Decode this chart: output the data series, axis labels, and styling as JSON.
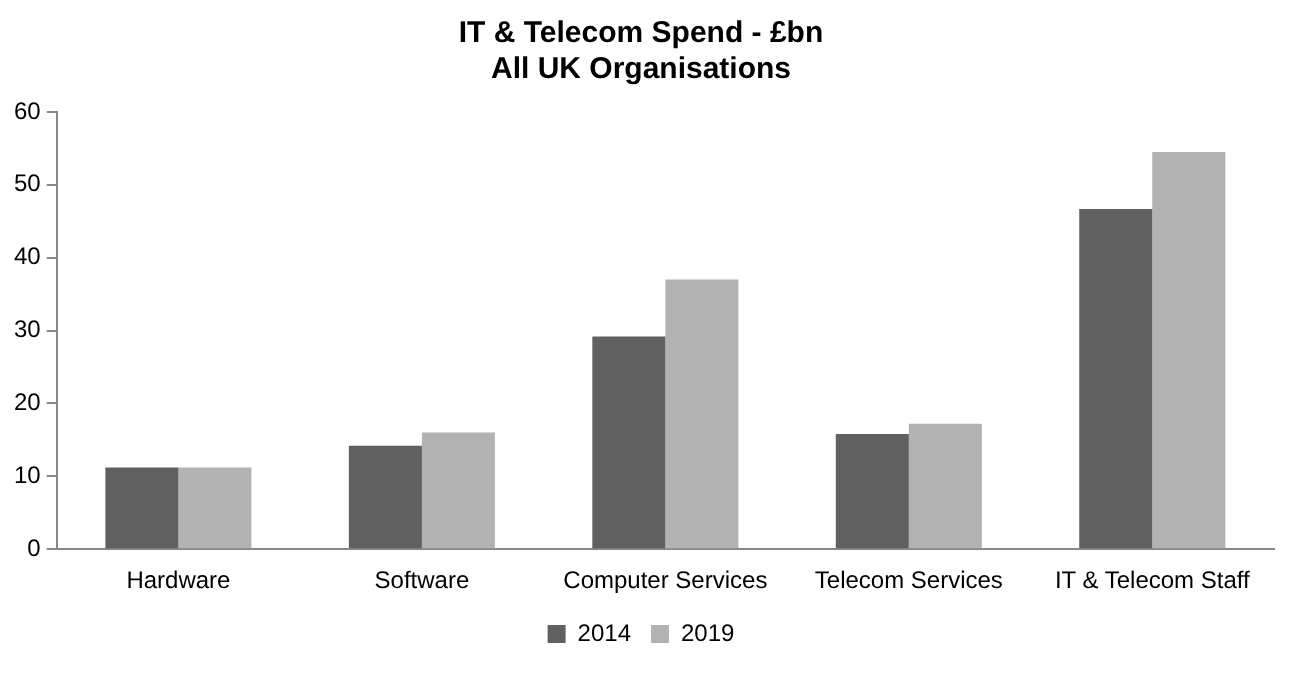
{
  "chart_data": {
    "type": "bar",
    "title": [
      "IT & Telecom Spend - £bn",
      "All UK Organisations"
    ],
    "categories": [
      "Hardware",
      "Software",
      "Computer Services",
      "Telecom Services",
      "IT & Telecom Staff"
    ],
    "series": [
      {
        "name": "2014",
        "color": "#606060",
        "values": [
          11.2,
          14.2,
          29.2,
          15.8,
          46.7
        ]
      },
      {
        "name": "2019",
        "color": "#b2b2b2",
        "values": [
          11.2,
          16.0,
          37.0,
          17.2,
          54.5
        ]
      }
    ],
    "ylim": [
      0,
      60
    ],
    "yticks": [
      0,
      10,
      20,
      30,
      40,
      50,
      60
    ],
    "grid": false,
    "legend": "bottom"
  }
}
